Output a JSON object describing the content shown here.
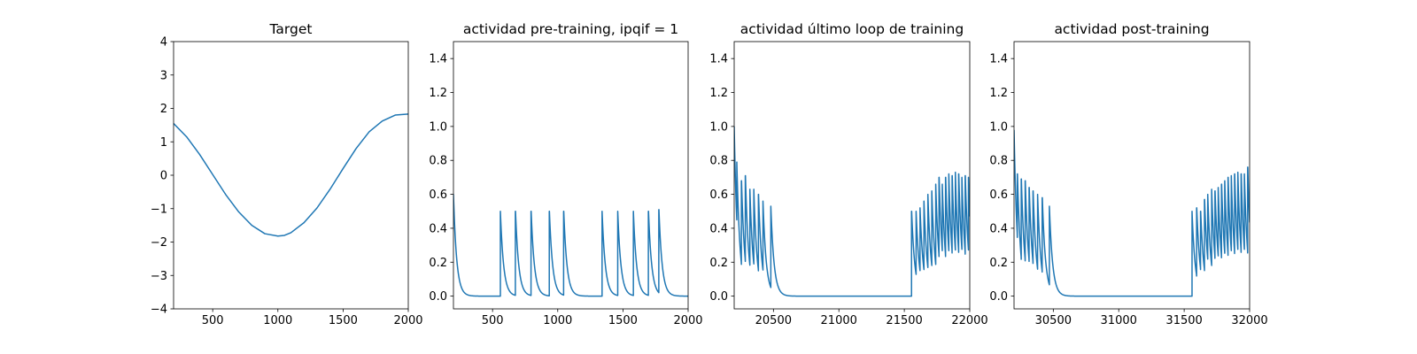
{
  "chart_data": [
    {
      "type": "line",
      "title": "Target",
      "xlabel": "",
      "ylabel": "",
      "xlim": [
        200,
        2000
      ],
      "ylim": [
        -4,
        4
      ],
      "xticks": [
        500,
        1000,
        1500,
        2000
      ],
      "xtick_labels": [
        "500",
        "1000",
        "1500",
        "2000"
      ],
      "yticks": [
        -4,
        -3,
        -2,
        -1,
        0,
        1,
        2,
        3,
        4
      ],
      "ytick_labels": [
        "−4",
        "−3",
        "−2",
        "−1",
        "0",
        "1",
        "2",
        "3",
        "4"
      ],
      "color": "#1f77b4",
      "series": [
        {
          "x": [
            200,
            300,
            400,
            500,
            600,
            700,
            800,
            900,
            1000,
            1050,
            1100,
            1200,
            1300,
            1400,
            1500,
            1600,
            1700,
            1800,
            1900,
            2000
          ],
          "y": [
            1.55,
            1.15,
            0.62,
            0.02,
            -0.58,
            -1.1,
            -1.5,
            -1.75,
            -1.82,
            -1.8,
            -1.72,
            -1.42,
            -0.98,
            -0.42,
            0.2,
            0.8,
            1.3,
            1.62,
            1.8,
            1.83
          ]
        }
      ]
    },
    {
      "type": "line",
      "title": "actividad pre-training, ipqif = 1",
      "xlabel": "",
      "ylabel": "",
      "xlim": [
        200,
        2000
      ],
      "ylim": [
        -0.075,
        1.5
      ],
      "xticks": [
        500,
        1000,
        1500,
        2000
      ],
      "xtick_labels": [
        "500",
        "1000",
        "1500",
        "2000"
      ],
      "yticks": [
        0.0,
        0.2,
        0.4,
        0.6,
        0.8,
        1.0,
        1.2,
        1.4
      ],
      "ytick_labels": [
        "0.0",
        "0.2",
        "0.4",
        "0.6",
        "0.8",
        "1.0",
        "1.2",
        "1.4"
      ],
      "color": "#1f77b4",
      "spike_model": {
        "initial": 0.6,
        "baseline": 0.0,
        "decay": 25,
        "spikes": [
          [
            560,
            0.5
          ],
          [
            675,
            0.5
          ],
          [
            795,
            0.5
          ],
          [
            935,
            0.5
          ],
          [
            1045,
            0.5
          ],
          [
            1340,
            0.5
          ],
          [
            1460,
            0.5
          ],
          [
            1580,
            0.5
          ],
          [
            1695,
            0.5
          ],
          [
            1775,
            0.51
          ]
        ]
      }
    },
    {
      "type": "line",
      "title": "actividad último loop de training",
      "xlabel": "",
      "ylabel": "",
      "xlim": [
        20200,
        22000
      ],
      "ylim": [
        -0.075,
        1.5
      ],
      "xticks": [
        20500,
        21000,
        21500,
        22000
      ],
      "xtick_labels": [
        "20500",
        "21000",
        "21500",
        "22000"
      ],
      "yticks": [
        0.0,
        0.2,
        0.4,
        0.6,
        0.8,
        1.0,
        1.2,
        1.4
      ],
      "ytick_labels": [
        "0.0",
        "0.2",
        "0.4",
        "0.6",
        "0.8",
        "1.0",
        "1.2",
        "1.4"
      ],
      "color": "#1f77b4",
      "spike_model": {
        "initial": 1.0,
        "baseline": 0.0,
        "decay": 25,
        "spikes": [
          [
            20220,
            0.79
          ],
          [
            20255,
            0.68
          ],
          [
            20285,
            0.71
          ],
          [
            20320,
            0.63
          ],
          [
            20350,
            0.63
          ],
          [
            20385,
            0.6
          ],
          [
            20420,
            0.56
          ],
          [
            20480,
            0.53
          ],
          [
            21555,
            0.5
          ],
          [
            21590,
            0.5
          ],
          [
            21620,
            0.52
          ],
          [
            21650,
            0.56
          ],
          [
            21680,
            0.6
          ],
          [
            21710,
            0.62
          ],
          [
            21740,
            0.66
          ],
          [
            21765,
            0.7
          ],
          [
            21790,
            0.66
          ],
          [
            21815,
            0.7
          ],
          [
            21840,
            0.72
          ],
          [
            21865,
            0.71
          ],
          [
            21890,
            0.73
          ],
          [
            21915,
            0.72
          ],
          [
            21940,
            0.7
          ],
          [
            21965,
            0.71
          ],
          [
            21990,
            0.7
          ]
        ]
      }
    },
    {
      "type": "line",
      "title": "actividad post-training",
      "xlabel": "",
      "ylabel": "",
      "xlim": [
        30200,
        32000
      ],
      "ylim": [
        -0.075,
        1.5
      ],
      "xticks": [
        30500,
        31000,
        31500,
        32000
      ],
      "xtick_labels": [
        "30500",
        "31000",
        "31500",
        "32000"
      ],
      "yticks": [
        0.0,
        0.2,
        0.4,
        0.6,
        0.8,
        1.0,
        1.2,
        1.4
      ],
      "ytick_labels": [
        "0.0",
        "0.2",
        "0.4",
        "0.6",
        "0.8",
        "1.0",
        "1.2",
        "1.4"
      ],
      "color": "#1f77b4",
      "spike_model": {
        "initial": 0.98,
        "baseline": 0.0,
        "decay": 25,
        "spikes": [
          [
            30225,
            0.72
          ],
          [
            30255,
            0.69
          ],
          [
            30285,
            0.68
          ],
          [
            30315,
            0.64
          ],
          [
            30345,
            0.62
          ],
          [
            30380,
            0.6
          ],
          [
            30415,
            0.58
          ],
          [
            30470,
            0.53
          ],
          [
            31560,
            0.5
          ],
          [
            31595,
            0.52
          ],
          [
            31625,
            0.5
          ],
          [
            31655,
            0.57
          ],
          [
            31680,
            0.6
          ],
          [
            31710,
            0.63
          ],
          [
            31735,
            0.62
          ],
          [
            31760,
            0.64
          ],
          [
            31785,
            0.66
          ],
          [
            31810,
            0.68
          ],
          [
            31835,
            0.7
          ],
          [
            31860,
            0.71
          ],
          [
            31885,
            0.72
          ],
          [
            31910,
            0.73
          ],
          [
            31935,
            0.72
          ],
          [
            31960,
            0.72
          ],
          [
            31985,
            0.76
          ]
        ]
      }
    }
  ]
}
